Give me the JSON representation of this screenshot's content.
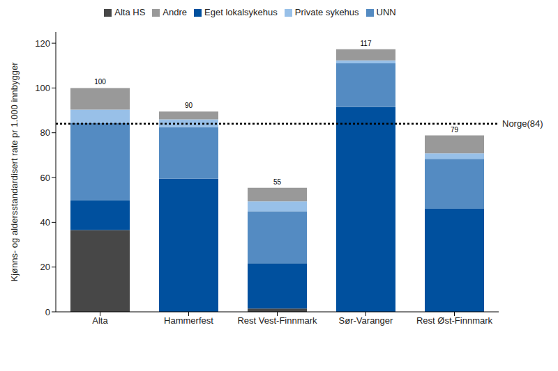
{
  "chart_data": {
    "type": "bar",
    "stacked": true,
    "grid": false,
    "legend": "top",
    "ylabel": "Kjønns- og aldersstandardisert rate pr 1.000 innbygger",
    "categories": [
      "Alta",
      "Hammerfest",
      "Rest Vest-Finnmark",
      "Sør-Varanger",
      "Rest Øst-Finnmark"
    ],
    "series": [
      {
        "name": "Alta HS",
        "color": "#474747",
        "values": [
          36.5,
          0,
          1.5,
          0,
          0
        ]
      },
      {
        "name": "Eget lokalsykehus",
        "color": "#00509e",
        "values": [
          13.3,
          59.5,
          20.2,
          91.5,
          46
        ]
      },
      {
        "name": "UNN",
        "color": "#548bc2",
        "values": [
          34.5,
          23,
          23.2,
          19.5,
          22.3
        ]
      },
      {
        "name": "Private sykehus",
        "color": "#98c0e8",
        "values": [
          6,
          3.5,
          4.5,
          1.3,
          2.5
        ]
      },
      {
        "name": "Andre",
        "color": "#999999",
        "values": [
          9.7,
          3.5,
          6,
          5,
          8
        ]
      }
    ],
    "totals": [
      100,
      90,
      55,
      117,
      79
    ],
    "reference_lines": [
      {
        "value": 84,
        "label": "Norge(84)"
      }
    ],
    "ylim": [
      0,
      125
    ],
    "yticks": [
      0,
      20,
      40,
      60,
      80,
      100,
      120
    ]
  }
}
